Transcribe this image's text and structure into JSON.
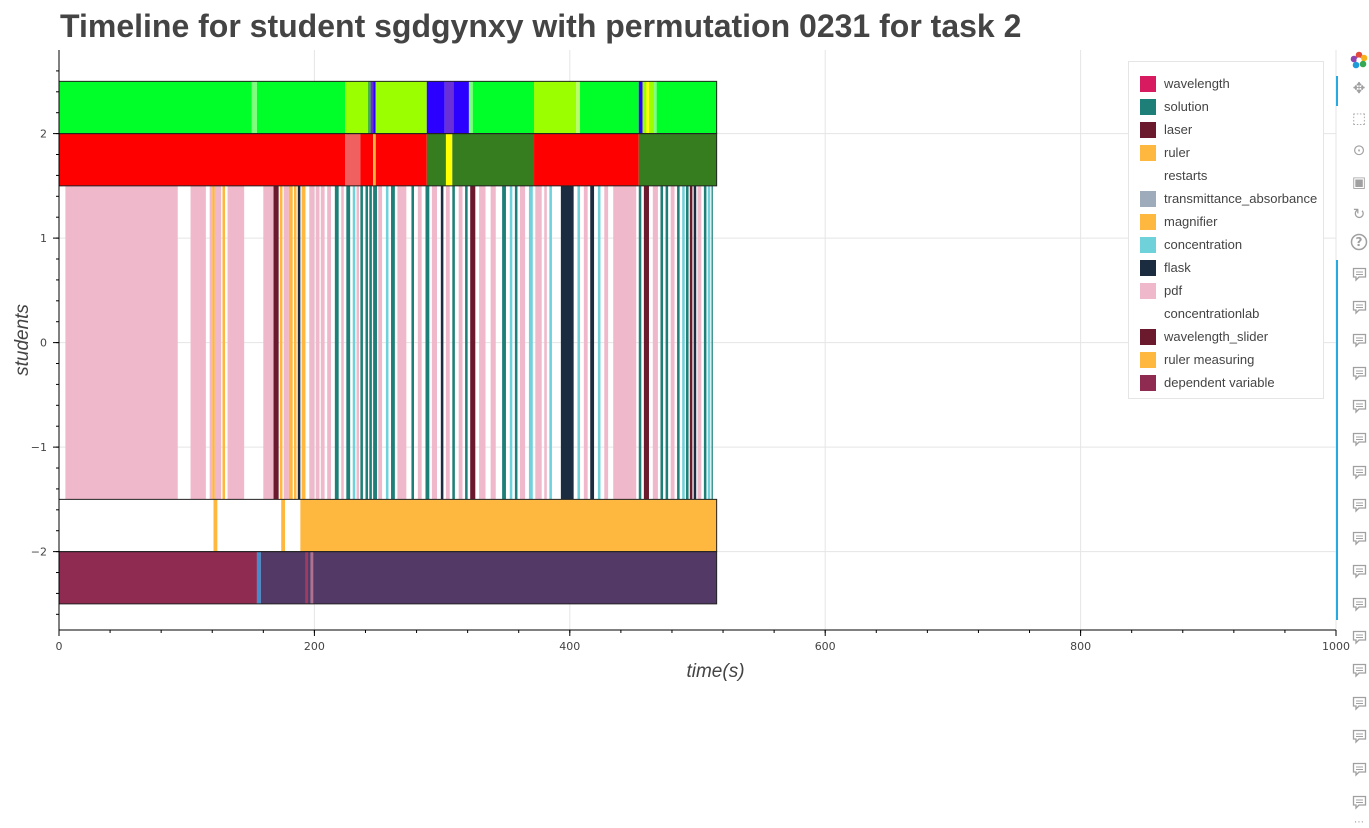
{
  "title": "Timeline for student sgdgynxy with permutation 0231 for task 2",
  "chart_data": {
    "type": "timeline",
    "xlabel": "time(s)",
    "ylabel": "students",
    "xlim": [
      0,
      1000
    ],
    "ylim": [
      -2.75,
      2.8
    ],
    "x_ticks": [
      0,
      200,
      400,
      600,
      800,
      1000
    ],
    "x_tick_labels": [
      "0",
      "200",
      "400",
      "600",
      "800",
      "1000"
    ],
    "y_ticks": [
      -2,
      -1,
      0,
      1,
      2
    ],
    "y_tick_labels": [
      "−2",
      "−1",
      "0",
      "1",
      "2"
    ],
    "grid": true,
    "legend_position": "top-right",
    "legend": [
      {
        "label": "wavelength",
        "color": "#d81b60"
      },
      {
        "label": "solution",
        "color": "#1e7f78"
      },
      {
        "label": "laser",
        "color": "#6b1a2e"
      },
      {
        "label": "ruler",
        "color": "#ffb83f"
      },
      {
        "label": "restarts",
        "color": "#ffffff"
      },
      {
        "label": "transmittance_absorbance",
        "color": "#9eabba"
      },
      {
        "label": "magnifier",
        "color": "#ffb83f"
      },
      {
        "label": "concentration",
        "color": "#6fd1d9"
      },
      {
        "label": "flask",
        "color": "#1b2b40"
      },
      {
        "label": "pdf",
        "color": "#f0b8cb"
      },
      {
        "label": "concentrationlab",
        "color": "#ffffff"
      },
      {
        "label": "wavelength_slider",
        "color": "#6b1a2e"
      },
      {
        "label": "ruler measuring",
        "color": "#ffb83f"
      },
      {
        "label": "dependent variable",
        "color": "#8f2a50"
      }
    ],
    "rows": [
      {
        "y0": 2.0,
        "y1": 2.5,
        "segments": [
          {
            "x0": 0,
            "x1": 151,
            "color": "#00ff28"
          },
          {
            "x0": 151,
            "x1": 155,
            "color": "#7dff7d"
          },
          {
            "x0": 155,
            "x1": 224,
            "color": "#00ff28"
          },
          {
            "x0": 224,
            "x1": 242,
            "color": "#9cff00"
          },
          {
            "x0": 242,
            "x1": 244,
            "color": "#3db43d"
          },
          {
            "x0": 244,
            "x1": 246,
            "color": "#6a30d8"
          },
          {
            "x0": 246,
            "x1": 248,
            "color": "#2b00ff"
          },
          {
            "x0": 248,
            "x1": 288,
            "color": "#9cff00"
          },
          {
            "x0": 288,
            "x1": 302,
            "color": "#2b00ff"
          },
          {
            "x0": 302,
            "x1": 309,
            "color": "#6a30d8"
          },
          {
            "x0": 309,
            "x1": 321,
            "color": "#2b00ff"
          },
          {
            "x0": 321,
            "x1": 324,
            "color": "#7dff7d"
          },
          {
            "x0": 324,
            "x1": 372,
            "color": "#00ff28"
          },
          {
            "x0": 372,
            "x1": 405,
            "color": "#9cff00"
          },
          {
            "x0": 405,
            "x1": 408,
            "color": "#b6ff66"
          },
          {
            "x0": 408,
            "x1": 454,
            "color": "#00ff28"
          },
          {
            "x0": 454,
            "x1": 457,
            "color": "#2b00ff"
          },
          {
            "x0": 457,
            "x1": 460,
            "color": "#9cff00"
          },
          {
            "x0": 460,
            "x1": 462,
            "color": "#ffff00"
          },
          {
            "x0": 462,
            "x1": 466,
            "color": "#9cff00"
          },
          {
            "x0": 466,
            "x1": 468,
            "color": "#7dff7d"
          },
          {
            "x0": 468,
            "x1": 515,
            "color": "#00ff28"
          }
        ]
      },
      {
        "y0": 1.5,
        "y1": 2.0,
        "segments": [
          {
            "x0": 0,
            "x1": 224,
            "color": "#ff0000"
          },
          {
            "x0": 224,
            "x1": 236,
            "color": "#f06060"
          },
          {
            "x0": 236,
            "x1": 246,
            "color": "#ff0000"
          },
          {
            "x0": 246,
            "x1": 248,
            "color": "#ffb83f"
          },
          {
            "x0": 248,
            "x1": 288,
            "color": "#ff0000"
          },
          {
            "x0": 288,
            "x1": 303,
            "color": "#367d20"
          },
          {
            "x0": 303,
            "x1": 308,
            "color": "#ffff00"
          },
          {
            "x0": 308,
            "x1": 372,
            "color": "#367d20"
          },
          {
            "x0": 372,
            "x1": 454,
            "color": "#ff0000"
          },
          {
            "x0": 454,
            "x1": 515,
            "color": "#367d20"
          }
        ]
      },
      {
        "y0": -1.5,
        "y1": 1.5,
        "segments": [
          {
            "x0": 5,
            "x1": 93,
            "color": "#f0b8cb"
          },
          {
            "x0": 103,
            "x1": 115,
            "color": "#f0b8cb"
          },
          {
            "x0": 118,
            "x1": 120,
            "color": "#f0b8cb"
          },
          {
            "x0": 120,
            "x1": 122,
            "color": "#ffb83f"
          },
          {
            "x0": 122,
            "x1": 127,
            "color": "#f0b8cb"
          },
          {
            "x0": 128,
            "x1": 130,
            "color": "#ffb83f"
          },
          {
            "x0": 132,
            "x1": 145,
            "color": "#f0b8cb"
          },
          {
            "x0": 160,
            "x1": 168,
            "color": "#f0b8cb"
          },
          {
            "x0": 168,
            "x1": 172,
            "color": "#6b1a2e"
          },
          {
            "x0": 173,
            "x1": 175,
            "color": "#ffb83f"
          },
          {
            "x0": 176,
            "x1": 180,
            "color": "#f0b8cb"
          },
          {
            "x0": 180,
            "x1": 183,
            "color": "#ffb83f"
          },
          {
            "x0": 184,
            "x1": 186,
            "color": "#ffb83f"
          },
          {
            "x0": 187,
            "x1": 189,
            "color": "#1b2b40"
          },
          {
            "x0": 190,
            "x1": 193,
            "color": "#ffb83f"
          },
          {
            "x0": 196,
            "x1": 200,
            "color": "#f0b8cb"
          },
          {
            "x0": 201,
            "x1": 204,
            "color": "#f0b8cb"
          },
          {
            "x0": 205,
            "x1": 208,
            "color": "#f0b8cb"
          },
          {
            "x0": 210,
            "x1": 213,
            "color": "#f0b8cb"
          },
          {
            "x0": 216,
            "x1": 219,
            "color": "#1e7f78"
          },
          {
            "x0": 221,
            "x1": 223,
            "color": "#f0b8cb"
          },
          {
            "x0": 225,
            "x1": 228,
            "color": "#1e7f78"
          },
          {
            "x0": 230,
            "x1": 232,
            "color": "#6fd1d9"
          },
          {
            "x0": 233,
            "x1": 235,
            "color": "#f0b8cb"
          },
          {
            "x0": 236,
            "x1": 238,
            "color": "#1e7f78"
          },
          {
            "x0": 240,
            "x1": 242,
            "color": "#1e7f78"
          },
          {
            "x0": 243,
            "x1": 245,
            "color": "#1e7f78"
          },
          {
            "x0": 246,
            "x1": 249,
            "color": "#1e7f78"
          },
          {
            "x0": 250,
            "x1": 253,
            "color": "#f0b8cb"
          },
          {
            "x0": 256,
            "x1": 258,
            "color": "#6fd1d9"
          },
          {
            "x0": 260,
            "x1": 263,
            "color": "#1e7f78"
          },
          {
            "x0": 265,
            "x1": 272,
            "color": "#f0b8cb"
          },
          {
            "x0": 276,
            "x1": 278,
            "color": "#1e7f78"
          },
          {
            "x0": 281,
            "x1": 284,
            "color": "#f0b8cb"
          },
          {
            "x0": 287,
            "x1": 290,
            "color": "#1e7f78"
          },
          {
            "x0": 292,
            "x1": 296,
            "color": "#f0b8cb"
          },
          {
            "x0": 299,
            "x1": 301,
            "color": "#1b2b40"
          },
          {
            "x0": 303,
            "x1": 306,
            "color": "#f0b8cb"
          },
          {
            "x0": 308,
            "x1": 310,
            "color": "#1e7f78"
          },
          {
            "x0": 313,
            "x1": 316,
            "color": "#f0b8cb"
          },
          {
            "x0": 318,
            "x1": 320,
            "color": "#1e7f78"
          },
          {
            "x0": 322,
            "x1": 326,
            "color": "#6b1a2e"
          },
          {
            "x0": 329,
            "x1": 334,
            "color": "#f0b8cb"
          },
          {
            "x0": 338,
            "x1": 342,
            "color": "#f0b8cb"
          },
          {
            "x0": 347,
            "x1": 350,
            "color": "#1e7f78"
          },
          {
            "x0": 353,
            "x1": 355,
            "color": "#6fd1d9"
          },
          {
            "x0": 357,
            "x1": 359,
            "color": "#1e7f78"
          },
          {
            "x0": 361,
            "x1": 365,
            "color": "#f0b8cb"
          },
          {
            "x0": 368,
            "x1": 371,
            "color": "#6fd1d9"
          },
          {
            "x0": 373,
            "x1": 378,
            "color": "#f0b8cb"
          },
          {
            "x0": 380,
            "x1": 382,
            "color": "#f0b8cb"
          },
          {
            "x0": 384,
            "x1": 386,
            "color": "#6fd1d9"
          },
          {
            "x0": 393,
            "x1": 403,
            "color": "#1b2b40"
          },
          {
            "x0": 406,
            "x1": 408,
            "color": "#6fd1d9"
          },
          {
            "x0": 411,
            "x1": 414,
            "color": "#f0b8cb"
          },
          {
            "x0": 416,
            "x1": 419,
            "color": "#1b2b40"
          },
          {
            "x0": 422,
            "x1": 424,
            "color": "#6fd1d9"
          },
          {
            "x0": 427,
            "x1": 430,
            "color": "#f0b8cb"
          },
          {
            "x0": 434,
            "x1": 452,
            "color": "#f0b8cb"
          },
          {
            "x0": 454,
            "x1": 456,
            "color": "#1e7f78"
          },
          {
            "x0": 458,
            "x1": 462,
            "color": "#6b1a2e"
          },
          {
            "x0": 465,
            "x1": 469,
            "color": "#f0b8cb"
          },
          {
            "x0": 471,
            "x1": 473,
            "color": "#1e7f78"
          },
          {
            "x0": 475,
            "x1": 477,
            "color": "#1e7f78"
          },
          {
            "x0": 479,
            "x1": 482,
            "color": "#f0b8cb"
          },
          {
            "x0": 484,
            "x1": 486,
            "color": "#1e7f78"
          },
          {
            "x0": 488,
            "x1": 490,
            "color": "#6fd1d9"
          },
          {
            "x0": 491,
            "x1": 493,
            "color": "#1e7f78"
          },
          {
            "x0": 494,
            "x1": 496,
            "color": "#6b1a2e"
          },
          {
            "x0": 497,
            "x1": 499,
            "color": "#1b2b40"
          },
          {
            "x0": 500,
            "x1": 503,
            "color": "#f0b8cb"
          },
          {
            "x0": 505,
            "x1": 507,
            "color": "#1e7f78"
          },
          {
            "x0": 508,
            "x1": 510,
            "color": "#6fd1d9"
          },
          {
            "x0": 511,
            "x1": 512,
            "color": "#1e7f78"
          }
        ]
      },
      {
        "y0": -2.0,
        "y1": -1.5,
        "segments": [
          {
            "x0": 121,
            "x1": 124,
            "color": "#ffb83f"
          },
          {
            "x0": 174,
            "x1": 177,
            "color": "#ffb83f"
          },
          {
            "x0": 189,
            "x1": 515,
            "color": "#ffb83f"
          }
        ]
      },
      {
        "y0": -2.5,
        "y1": -2.0,
        "segments": [
          {
            "x0": 0,
            "x1": 155,
            "color": "#8f2a50"
          },
          {
            "x0": 155,
            "x1": 158,
            "color": "#3d8fd0"
          },
          {
            "x0": 158,
            "x1": 193,
            "color": "#533a66"
          },
          {
            "x0": 193,
            "x1": 195,
            "color": "#a03a60"
          },
          {
            "x0": 195,
            "x1": 197,
            "color": "#533a66"
          },
          {
            "x0": 197,
            "x1": 199,
            "color": "#b07090"
          },
          {
            "x0": 199,
            "x1": 515,
            "color": "#533a66"
          }
        ]
      }
    ]
  },
  "toolbar": {
    "tools": [
      {
        "name": "bokeh-logo-icon",
        "glyph": ""
      },
      {
        "name": "pan-icon",
        "glyph": "✥"
      },
      {
        "name": "box-zoom-icon",
        "glyph": "⬚"
      },
      {
        "name": "wheel-zoom-icon",
        "glyph": "⊙"
      },
      {
        "name": "save-icon",
        "glyph": "▣"
      },
      {
        "name": "reset-icon",
        "glyph": "↻"
      },
      {
        "name": "help-icon",
        "glyph": "?"
      }
    ],
    "hover_tool_count": 17
  }
}
